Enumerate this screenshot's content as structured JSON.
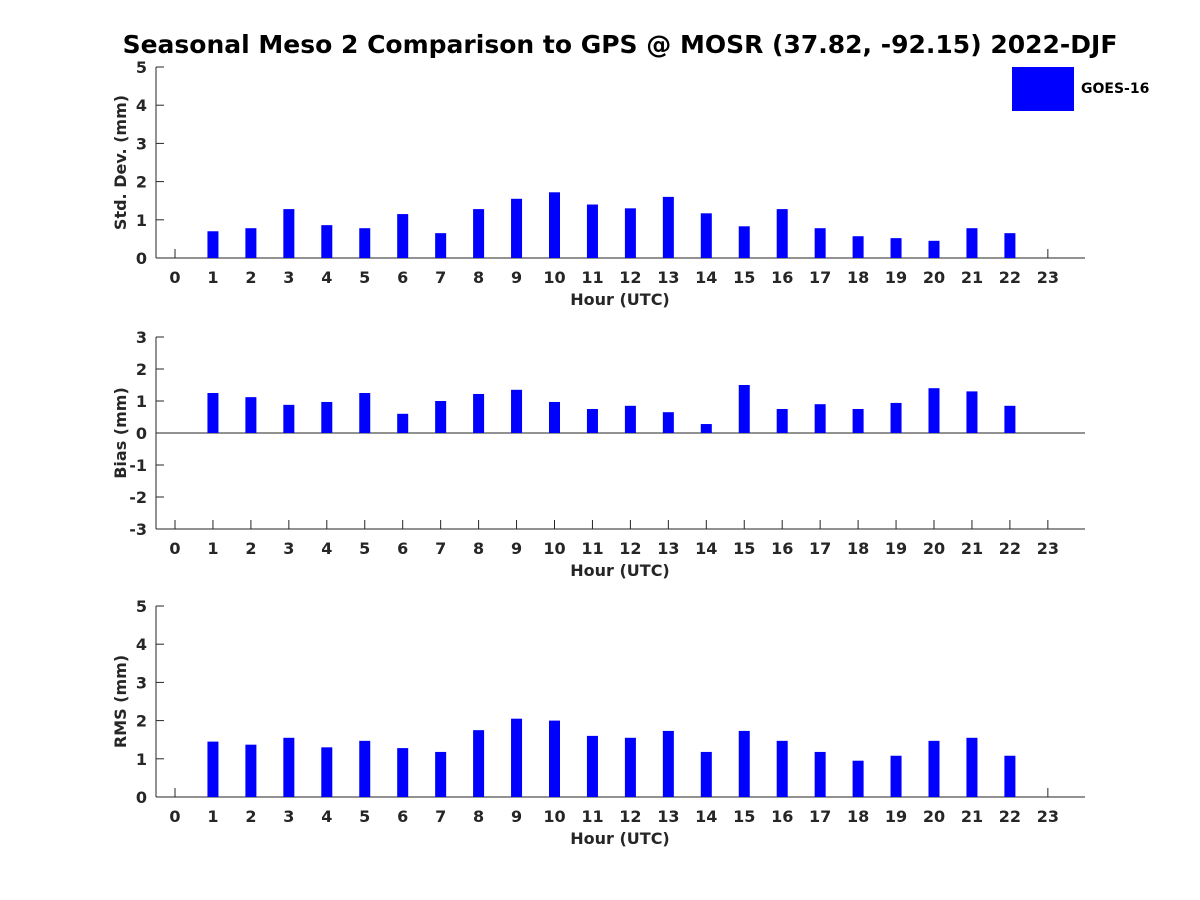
{
  "title": "Seasonal Meso 2 Comparison to GPS @ MOSR (37.82, -92.15) 2022-DJF",
  "legend": {
    "label": "GOES-16",
    "color": "#0000ff"
  },
  "chart_data": [
    {
      "type": "bar",
      "ylabel": "Std. Dev. (mm)",
      "xlabel": "Hour (UTC)",
      "ylim": [
        0,
        5
      ],
      "yticks": [
        0,
        1,
        2,
        3,
        4,
        5
      ],
      "categories": [
        "0",
        "1",
        "2",
        "3",
        "4",
        "5",
        "6",
        "7",
        "8",
        "9",
        "10",
        "11",
        "12",
        "13",
        "14",
        "15",
        "16",
        "17",
        "18",
        "19",
        "20",
        "21",
        "22",
        "23"
      ],
      "series": [
        {
          "name": "GOES-16",
          "color": "#0000ff",
          "values": [
            null,
            0.7,
            0.78,
            1.28,
            0.86,
            0.78,
            1.15,
            0.65,
            1.28,
            1.55,
            1.72,
            1.4,
            1.3,
            1.6,
            1.17,
            0.83,
            1.28,
            0.78,
            0.57,
            0.52,
            0.45,
            0.78,
            0.65,
            null
          ]
        }
      ]
    },
    {
      "type": "bar",
      "ylabel": "Bias (mm)",
      "xlabel": "Hour (UTC)",
      "ylim": [
        -3,
        3
      ],
      "yticks": [
        -3,
        -2,
        -1,
        0,
        1,
        2,
        3
      ],
      "categories": [
        "0",
        "1",
        "2",
        "3",
        "4",
        "5",
        "6",
        "7",
        "8",
        "9",
        "10",
        "11",
        "12",
        "13",
        "14",
        "15",
        "16",
        "17",
        "18",
        "19",
        "20",
        "21",
        "22",
        "23"
      ],
      "series": [
        {
          "name": "GOES-16",
          "color": "#0000ff",
          "values": [
            null,
            1.25,
            1.12,
            0.88,
            0.97,
            1.25,
            0.6,
            1.0,
            1.22,
            1.35,
            0.97,
            0.75,
            0.85,
            0.65,
            0.28,
            1.5,
            0.75,
            0.9,
            0.75,
            0.94,
            1.4,
            1.3,
            0.85,
            null
          ]
        }
      ]
    },
    {
      "type": "bar",
      "ylabel": "RMS (mm)",
      "xlabel": "Hour (UTC)",
      "ylim": [
        0,
        5
      ],
      "yticks": [
        0,
        1,
        2,
        3,
        4,
        5
      ],
      "categories": [
        "0",
        "1",
        "2",
        "3",
        "4",
        "5",
        "6",
        "7",
        "8",
        "9",
        "10",
        "11",
        "12",
        "13",
        "14",
        "15",
        "16",
        "17",
        "18",
        "19",
        "20",
        "21",
        "22",
        "23"
      ],
      "series": [
        {
          "name": "GOES-16",
          "color": "#0000ff",
          "values": [
            null,
            1.45,
            1.37,
            1.55,
            1.3,
            1.47,
            1.28,
            1.18,
            1.75,
            2.05,
            2.0,
            1.6,
            1.55,
            1.73,
            1.18,
            1.73,
            1.47,
            1.18,
            0.95,
            1.08,
            1.47,
            1.55,
            1.08,
            null
          ]
        }
      ]
    }
  ]
}
